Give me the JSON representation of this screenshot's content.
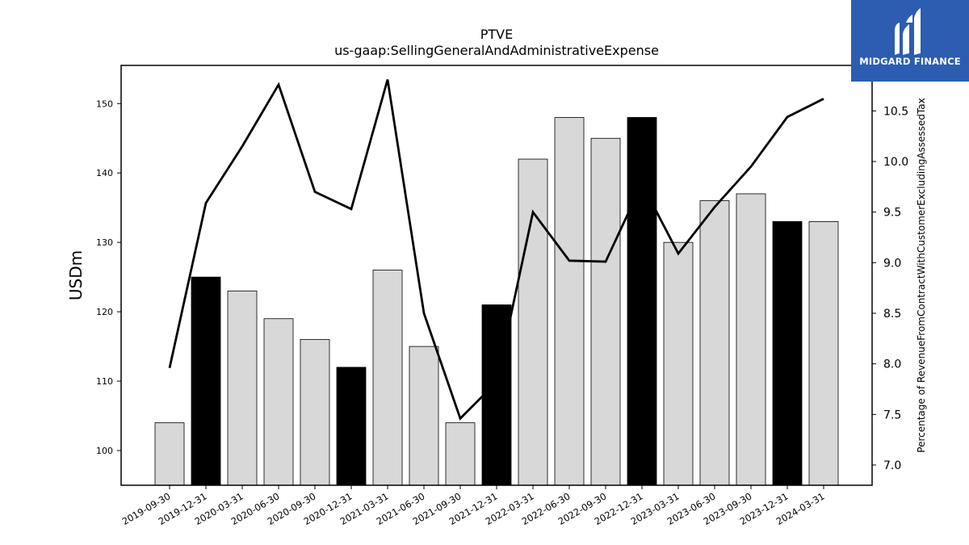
{
  "chart_data": {
    "type": "bar",
    "title": "PTVE",
    "subtitle": "us-gaap:SellingGeneralAndAdministrativeExpense",
    "ylabel": "USDm",
    "y2label": "Percentage of RevenueFromContractWithCustomerExcludingAssessedTax",
    "ylim": [
      95,
      155.5
    ],
    "y2lim": [
      6.8,
      10.95
    ],
    "yticks": [
      100,
      110,
      120,
      130,
      140,
      150
    ],
    "y2ticks": [
      7.0,
      7.5,
      8.0,
      8.5,
      9.0,
      9.5,
      10.0,
      10.5
    ],
    "categories": [
      "2019-09-30",
      "2019-12-31",
      "2020-03-31",
      "2020-06-30",
      "2020-09-30",
      "2020-12-31",
      "2021-03-31",
      "2021-06-30",
      "2021-09-30",
      "2021-12-31",
      "2022-03-31",
      "2022-06-30",
      "2022-09-30",
      "2022-12-31",
      "2023-03-31",
      "2023-06-30",
      "2023-09-30",
      "2023-12-31",
      "2024-03-31"
    ],
    "series": [
      {
        "kind": "bar",
        "values": [
          104,
          125,
          123,
          119,
          116,
          112,
          126,
          115,
          104,
          121,
          142,
          148,
          145,
          148,
          130,
          136,
          137,
          133,
          133
        ],
        "highlight": [
          false,
          true,
          false,
          false,
          false,
          true,
          false,
          false,
          false,
          true,
          false,
          false,
          false,
          true,
          false,
          false,
          false,
          true,
          false
        ]
      },
      {
        "kind": "line",
        "axis": "right",
        "values": [
          7.96,
          9.59,
          10.15,
          10.76,
          9.7,
          9.53,
          10.81,
          8.5,
          7.46,
          7.82,
          9.5,
          9.02,
          9.01,
          9.78,
          9.09,
          9.55,
          9.95,
          10.44,
          10.62
        ]
      }
    ],
    "colors": {
      "bar": "#d8d8d8",
      "bar_highlight": "#000000",
      "line": "#000000",
      "logo_bg": "#2c5db0"
    }
  },
  "logo": {
    "text": "MIDGARD FINANCE",
    "icon": "midgard-logo-icon"
  }
}
